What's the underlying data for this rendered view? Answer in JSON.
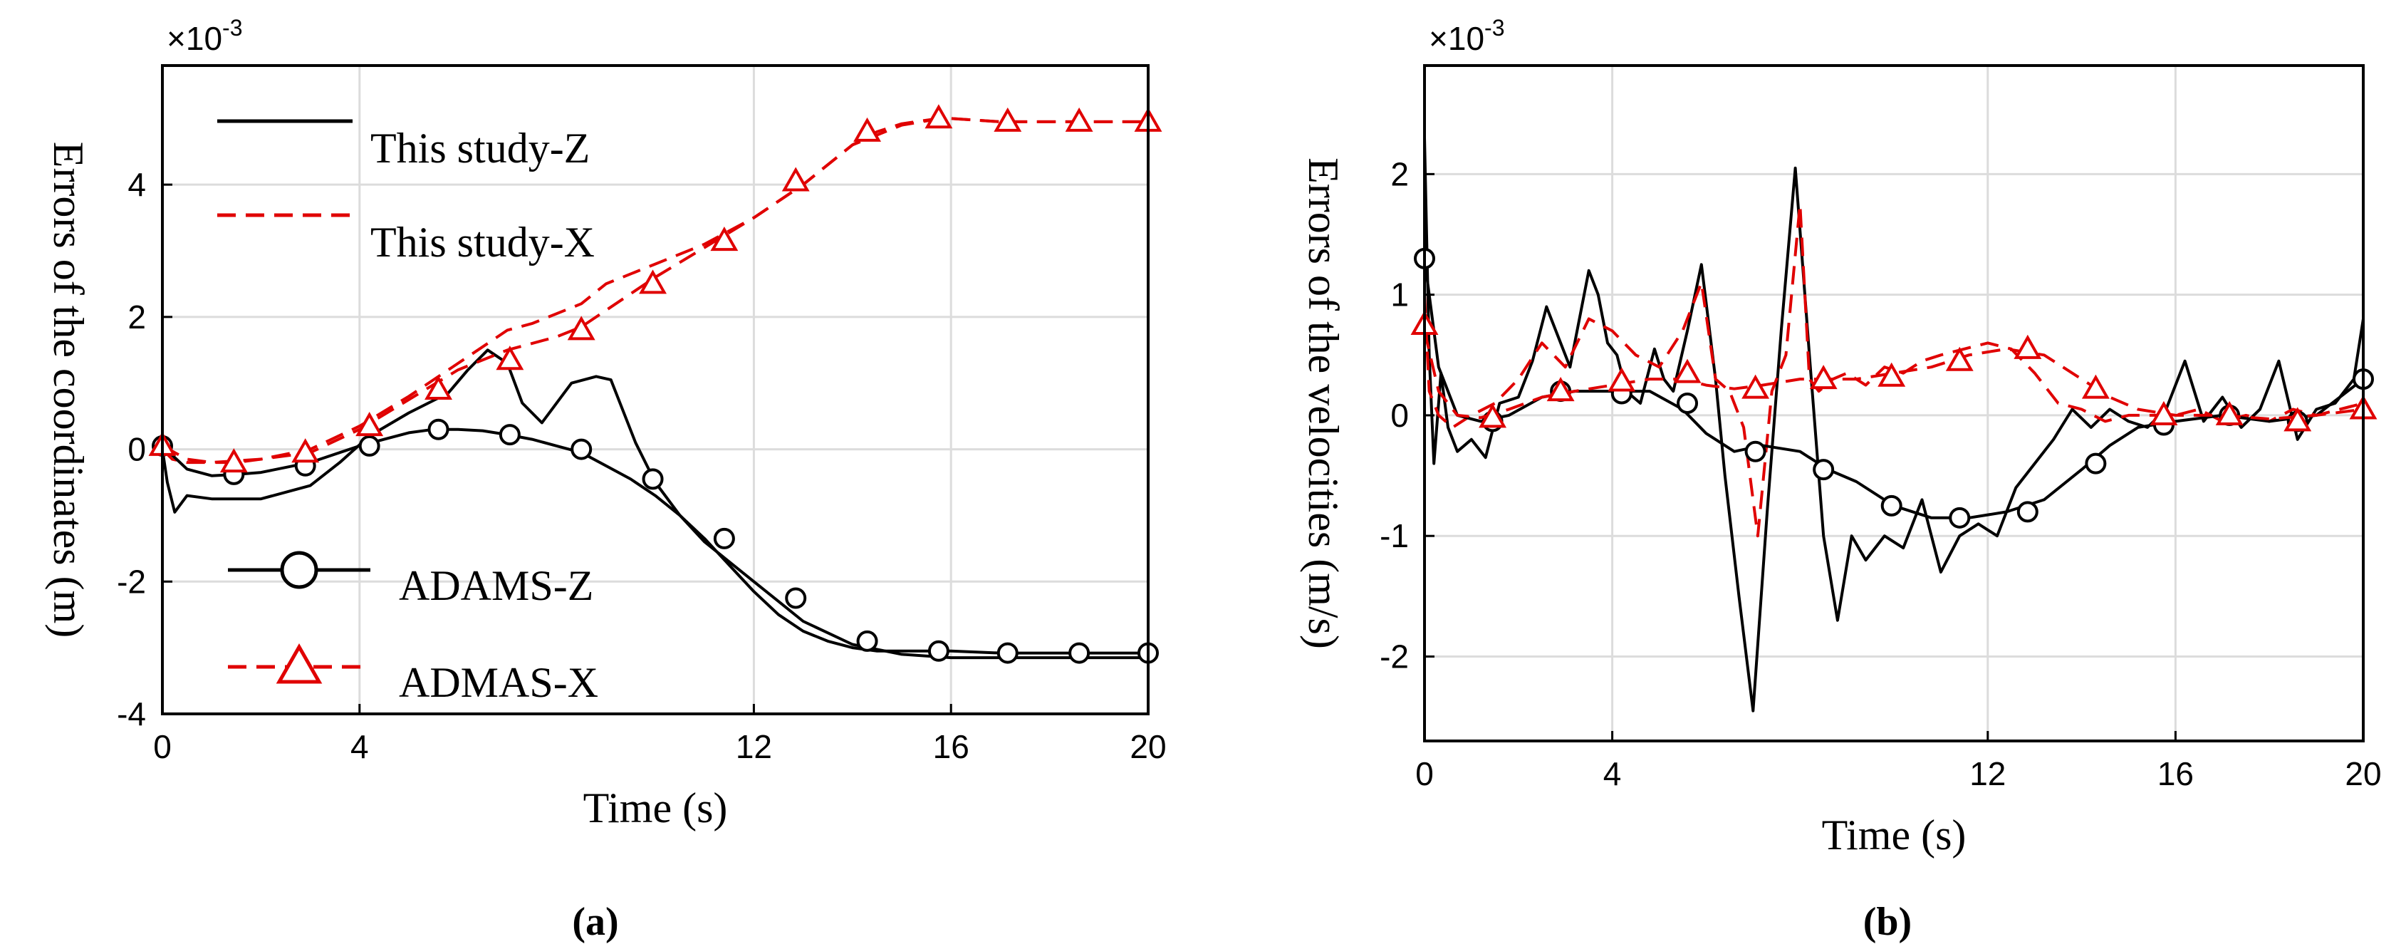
{
  "chart_data": [
    {
      "type": "line",
      "panel_label": "(a)",
      "xlabel": "Time (s)",
      "ylabel": "Errors of the coordinates (m)",
      "y_exponent": "-3",
      "xlim": [
        0,
        20
      ],
      "ylim": [
        -4,
        5.8
      ],
      "xticks": [
        0,
        4,
        12,
        16,
        20
      ],
      "yticks": [
        -4,
        -2,
        0,
        2,
        4
      ],
      "grid": true,
      "legend_placement": "left",
      "series": [
        {
          "name": "This study-Z",
          "color": "#000000",
          "dash": "solid",
          "marker": "none",
          "x": [
            0,
            0.1,
            0.25,
            0.5,
            1,
            2,
            3,
            3.6,
            4.2,
            5,
            5.8,
            6.2,
            6.6,
            7,
            7.3,
            7.7,
            8.3,
            8.8,
            9.1,
            9.6,
            10,
            10.5,
            11,
            12,
            12.5,
            13,
            14,
            15,
            16,
            17,
            18,
            19,
            20
          ],
          "y": [
            0,
            -0.5,
            -0.95,
            -0.7,
            -0.75,
            -0.75,
            -0.55,
            -0.2,
            0.2,
            0.55,
            0.85,
            1.2,
            1.5,
            1.3,
            0.7,
            0.4,
            1.0,
            1.1,
            1.05,
            0.1,
            -0.5,
            -1.0,
            -1.4,
            -2.0,
            -2.3,
            -2.6,
            -2.95,
            -3.1,
            -3.15,
            -3.15,
            -3.15,
            -3.15,
            -3.15
          ]
        },
        {
          "name": "This study-X",
          "color": "#e00000",
          "dash": "dashed",
          "marker": "none",
          "x": [
            0,
            0.2,
            0.5,
            1,
            2,
            3,
            4,
            5,
            6,
            7,
            7.5,
            8.5,
            9,
            10,
            11,
            12,
            13,
            14,
            15,
            15.8,
            16,
            17,
            18,
            19,
            20
          ],
          "y": [
            0,
            -0.15,
            -0.2,
            -0.2,
            -0.15,
            0,
            0.35,
            0.8,
            1.3,
            1.8,
            1.9,
            2.2,
            2.5,
            2.8,
            3.1,
            3.5,
            4.0,
            4.6,
            4.9,
            5.0,
            5.0,
            4.95,
            4.95,
            4.95,
            4.95
          ]
        },
        {
          "name": "ADAMS-Z",
          "color": "#000000",
          "dash": "solid",
          "marker": "circle",
          "x": [
            0,
            0.5,
            1,
            1.5,
            2,
            3,
            4,
            4.5,
            5,
            5.5,
            6,
            6.5,
            7,
            7.5,
            8,
            8.5,
            9,
            9.5,
            10,
            10.5,
            11,
            11.5,
            12,
            12.5,
            13,
            13.5,
            14,
            14.5,
            15,
            16,
            17,
            18,
            19,
            20
          ],
          "y": [
            0.05,
            -0.3,
            -0.4,
            -0.38,
            -0.35,
            -0.2,
            0.05,
            0.15,
            0.25,
            0.3,
            0.3,
            0.28,
            0.22,
            0.15,
            0.05,
            -0.05,
            -0.25,
            -0.45,
            -0.7,
            -1.0,
            -1.35,
            -1.75,
            -2.15,
            -2.5,
            -2.75,
            -2.9,
            -3.0,
            -3.05,
            -3.05,
            -3.05,
            -3.08,
            -3.08,
            -3.08,
            -3.08
          ],
          "marker_x": [
            0,
            1.45,
            2.9,
            4.2,
            5.6,
            7.05,
            8.5,
            9.95,
            11.4,
            12.85,
            14.3,
            15.75,
            17.15,
            18.6,
            20
          ],
          "marker_y": [
            0.05,
            -0.38,
            -0.25,
            0.05,
            0.3,
            0.22,
            0.0,
            -0.45,
            -1.35,
            -2.25,
            -2.9,
            -3.05,
            -3.08,
            -3.08,
            -3.08
          ]
        },
        {
          "name": "ADMAS-X",
          "color": "#e00000",
          "dash": "dashed",
          "marker": "triangle",
          "x": [
            0,
            0.5,
            1,
            1.5,
            2,
            3,
            4,
            5,
            6,
            7,
            8,
            8.5,
            9,
            10,
            11,
            12,
            13,
            14,
            14.5,
            15,
            15.75,
            16,
            17,
            18,
            19,
            20
          ],
          "y": [
            0.05,
            -0.15,
            -0.2,
            -0.2,
            -0.15,
            -0.05,
            0.3,
            0.75,
            1.2,
            1.5,
            1.7,
            1.85,
            2.1,
            2.6,
            3.05,
            3.5,
            4.0,
            4.6,
            4.8,
            4.92,
            5.0,
            5.0,
            4.95,
            4.95,
            4.95,
            4.95
          ],
          "marker_x": [
            0,
            1.45,
            2.9,
            4.2,
            5.6,
            7.05,
            8.5,
            9.95,
            11.4,
            12.85,
            14.3,
            15.75,
            17.15,
            18.6,
            20
          ],
          "marker_y": [
            0.05,
            -0.2,
            -0.05,
            0.35,
            0.9,
            1.35,
            1.8,
            2.5,
            3.15,
            4.05,
            4.8,
            5.0,
            4.95,
            4.95,
            4.95
          ]
        }
      ],
      "legend": [
        "This study-Z",
        "This study-X",
        "ADAMS-Z",
        "ADMAS-X"
      ]
    },
    {
      "type": "line",
      "panel_label": "(b)",
      "xlabel": "Time (s)",
      "ylabel": "Errors of the velocities (m/s)",
      "y_exponent": "-3",
      "xlim": [
        0,
        20
      ],
      "ylim": [
        -2.7,
        2.9
      ],
      "xticks": [
        0,
        4,
        12,
        16,
        20
      ],
      "yticks": [
        -2,
        -1,
        0,
        1,
        2
      ],
      "grid": true,
      "series": [
        {
          "name": "",
          "color": "#000000",
          "dash": "solid",
          "marker": "none",
          "x": [
            0,
            0.1,
            0.2,
            0.35,
            0.5,
            0.7,
            1,
            1.3,
            1.6,
            2,
            2.3,
            2.6,
            2.9,
            3.1,
            3.3,
            3.5,
            3.7,
            3.9,
            4.1,
            4.3,
            4.6,
            4.9,
            5.1,
            5.3,
            5.6,
            5.9,
            6.2,
            6.4,
            6.7,
            7,
            7.3,
            7.6,
            7.9,
            8.2,
            8.5,
            8.8,
            9.1,
            9.4,
            9.8,
            10.2,
            10.6,
            11,
            11.4,
            11.8,
            12.2,
            12.6,
            13,
            13.4,
            13.8,
            14.2,
            14.6,
            15,
            15.4,
            15.8,
            16.2,
            16.6,
            17,
            17.4,
            17.8,
            18.2,
            18.6,
            19,
            19.4,
            19.8,
            20
          ],
          "y": [
            2.3,
            0.5,
            -0.4,
            0.35,
            -0.1,
            -0.3,
            -0.2,
            -0.35,
            0.1,
            0.15,
            0.45,
            0.9,
            0.6,
            0.4,
            0.8,
            1.2,
            1.0,
            0.6,
            0.5,
            0.2,
            0.1,
            0.55,
            0.3,
            0.2,
            0.7,
            1.25,
            0.3,
            -0.5,
            -1.5,
            -2.45,
            -0.8,
            0.7,
            2.05,
            0.5,
            -1.0,
            -1.7,
            -1.0,
            -1.2,
            -1.0,
            -1.1,
            -0.7,
            -1.3,
            -1.0,
            -0.9,
            -1.0,
            -0.6,
            -0.4,
            -0.2,
            0.05,
            -0.1,
            0.05,
            -0.05,
            -0.1,
            0.05,
            0.45,
            -0.05,
            0.15,
            -0.1,
            0.05,
            0.45,
            -0.2,
            0.05,
            0.1,
            0.3,
            0.8
          ]
        },
        {
          "name": "",
          "color": "#e00000",
          "dash": "dashed",
          "marker": "none",
          "x": [
            0,
            0.1,
            0.3,
            0.6,
            1,
            1.5,
            2,
            2.5,
            3,
            3.5,
            4,
            4.5,
            5,
            5.5,
            5.9,
            6.2,
            6.5,
            6.8,
            7.1,
            7.4,
            7.7,
            8,
            8.2,
            8.4,
            8.7,
            9,
            9.4,
            9.8,
            10.2,
            10.6,
            11,
            11.5,
            12,
            12.5,
            13,
            13.5,
            14,
            14.5,
            15,
            15.5,
            16,
            16.5,
            17,
            17.5,
            18,
            18.5,
            19,
            19.5,
            20
          ],
          "y": [
            1.0,
            0.2,
            0.0,
            -0.1,
            0.0,
            0.1,
            0.3,
            0.6,
            0.4,
            0.8,
            0.7,
            0.5,
            0.4,
            0.7,
            1.1,
            0.3,
            0.2,
            -0.1,
            -1.0,
            0.2,
            0.5,
            1.75,
            0.3,
            0.2,
            0.3,
            0.35,
            0.25,
            0.4,
            0.35,
            0.45,
            0.5,
            0.55,
            0.6,
            0.55,
            0.35,
            0.1,
            0.05,
            -0.05,
            0.0,
            0.0,
            0.0,
            0.05,
            -0.05,
            0.0,
            -0.05,
            0.05,
            0.0,
            0.05,
            0.1
          ]
        },
        {
          "name": "",
          "color": "#000000",
          "dash": "solid",
          "marker": "circle",
          "x": [
            0,
            0.3,
            0.7,
            1.2,
            1.8,
            2.5,
            3.2,
            4,
            4.8,
            5.5,
            6,
            6.6,
            7.2,
            8,
            8.6,
            9.2,
            10,
            10.8,
            11.6,
            12.4,
            13.2,
            14,
            14.6,
            15.2,
            16,
            17,
            18,
            19,
            20
          ],
          "y": [
            1.3,
            0.4,
            0.0,
            -0.05,
            0.0,
            0.15,
            0.2,
            0.2,
            0.2,
            0.05,
            -0.15,
            -0.3,
            -0.25,
            -0.3,
            -0.45,
            -0.55,
            -0.75,
            -0.85,
            -0.85,
            -0.8,
            -0.7,
            -0.45,
            -0.25,
            -0.1,
            -0.05,
            0.0,
            -0.05,
            0.0,
            0.3
          ],
          "marker_x": [
            0,
            1.45,
            2.9,
            4.2,
            5.6,
            7.05,
            8.5,
            9.95,
            11.4,
            12.85,
            14.3,
            15.75,
            17.15,
            18.6,
            20
          ],
          "marker_y": [
            1.3,
            -0.05,
            0.2,
            0.18,
            0.1,
            -0.3,
            -0.45,
            -0.75,
            -0.85,
            -0.8,
            -0.4,
            -0.08,
            0.0,
            -0.05,
            0.3
          ]
        },
        {
          "name": "",
          "color": "#e00000",
          "dash": "dashed",
          "marker": "triangle",
          "x": [
            0,
            0.3,
            0.7,
            1.2,
            1.8,
            2.5,
            3.2,
            4,
            4.8,
            5.5,
            6,
            6.6,
            7.2,
            8,
            8.6,
            9.2,
            10,
            10.8,
            11.6,
            12.4,
            13.2,
            14,
            14.6,
            15.2,
            16,
            17,
            18,
            19,
            20
          ],
          "y": [
            0.7,
            0.2,
            0.0,
            -0.02,
            0.05,
            0.15,
            0.2,
            0.25,
            0.3,
            0.3,
            0.25,
            0.22,
            0.25,
            0.3,
            0.3,
            0.3,
            0.35,
            0.4,
            0.5,
            0.55,
            0.5,
            0.3,
            0.15,
            0.05,
            0.0,
            0.0,
            -0.03,
            0.0,
            0.05
          ],
          "marker_x": [
            0,
            1.45,
            2.9,
            4.2,
            5.6,
            7.05,
            8.5,
            9.95,
            11.4,
            12.85,
            14.3,
            15.75,
            17.15,
            18.6,
            20
          ],
          "marker_y": [
            0.75,
            -0.02,
            0.2,
            0.28,
            0.35,
            0.22,
            0.3,
            0.32,
            0.45,
            0.55,
            0.22,
            0.0,
            0.0,
            -0.05,
            0.05
          ]
        }
      ]
    }
  ]
}
